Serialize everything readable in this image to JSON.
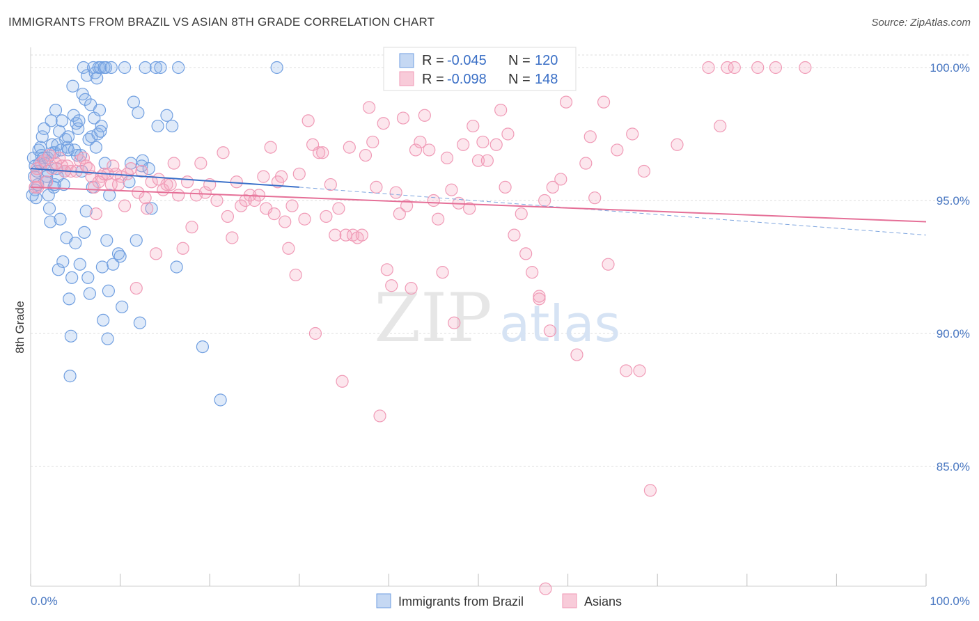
{
  "header": {
    "title": "IMMIGRANTS FROM BRAZIL VS ASIAN 8TH GRADE CORRELATION CHART",
    "source": "Source: ZipAtlas.com"
  },
  "watermark": {
    "zip": "ZIP",
    "atlas": "atlas"
  },
  "legend_top": [
    {
      "r_label": "R = ",
      "r_value": "-0.045",
      "n_label": "N = ",
      "n_value": "120"
    },
    {
      "r_label": "R = ",
      "r_value": "-0.098",
      "n_label": "N = ",
      "n_value": "148"
    }
  ],
  "chart_data": {
    "type": "scatter",
    "title": "IMMIGRANTS FROM BRAZIL VS ASIAN 8TH GRADE CORRELATION CHART",
    "xlabel": "",
    "ylabel": "8th Grade",
    "xlim": [
      0,
      100
    ],
    "ylim": [
      80.3,
      100.8
    ],
    "x_tick_labels": [
      {
        "value": 0,
        "label": "0.0%"
      },
      {
        "value": 100,
        "label": "100.0%"
      }
    ],
    "y_tick_labels": [
      {
        "value": 100,
        "label": "100.0%"
      },
      {
        "value": 95,
        "label": "95.0%"
      },
      {
        "value": 90,
        "label": "90.0%"
      },
      {
        "value": 85,
        "label": "85.0%"
      }
    ],
    "grid": "horizontal-dashed",
    "legend_placement": "top-center",
    "series": [
      {
        "name": "Immigrants from Brazil",
        "color": "#6f9ee0",
        "r": -0.045,
        "n": 120,
        "trend": {
          "x": [
            0,
            30
          ],
          "y": [
            96.2,
            95.5
          ],
          "dashed_to": [
            100,
            93.7
          ]
        },
        "points": [
          [
            0.3,
            96.6
          ],
          [
            0.5,
            96.3
          ],
          [
            0.5,
            95.4
          ],
          [
            0.6,
            95.1
          ],
          [
            0.8,
            95.6
          ],
          [
            0.9,
            96.9
          ],
          [
            1.0,
            96.4
          ],
          [
            1.1,
            97.0
          ],
          [
            1.2,
            96.7
          ],
          [
            1.3,
            97.4
          ],
          [
            1.4,
            96.6
          ],
          [
            1.5,
            97.7
          ],
          [
            1.6,
            96.4
          ],
          [
            1.7,
            95.7
          ],
          [
            1.8,
            95.9
          ],
          [
            1.9,
            96.6
          ],
          [
            2.0,
            95.2
          ],
          [
            2.1,
            94.7
          ],
          [
            2.2,
            94.2
          ],
          [
            2.3,
            98.0
          ],
          [
            2.4,
            97.1
          ],
          [
            2.5,
            96.8
          ],
          [
            2.6,
            95.5
          ],
          [
            2.7,
            96.8
          ],
          [
            2.8,
            98.4
          ],
          [
            2.9,
            96.2
          ],
          [
            3.0,
            97.1
          ],
          [
            3.1,
            92.4
          ],
          [
            3.2,
            97.6
          ],
          [
            3.3,
            94.3
          ],
          [
            3.4,
            96.9
          ],
          [
            3.5,
            98.0
          ],
          [
            3.6,
            92.7
          ],
          [
            3.7,
            95.6
          ],
          [
            3.8,
            96.1
          ],
          [
            3.9,
            97.3
          ],
          [
            4.0,
            93.6
          ],
          [
            4.1,
            97.0
          ],
          [
            4.2,
            96.9
          ],
          [
            4.3,
            91.3
          ],
          [
            4.4,
            88.4
          ],
          [
            4.5,
            89.9
          ],
          [
            4.6,
            92.1
          ],
          [
            4.7,
            99.3
          ],
          [
            4.8,
            98.2
          ],
          [
            4.9,
            96.9
          ],
          [
            5.0,
            93.4
          ],
          [
            5.1,
            97.9
          ],
          [
            5.2,
            96.7
          ],
          [
            5.3,
            97.7
          ],
          [
            5.4,
            98.0
          ],
          [
            5.5,
            92.6
          ],
          [
            5.6,
            96.7
          ],
          [
            5.7,
            96.1
          ],
          [
            5.8,
            99.0
          ],
          [
            5.9,
            100.0
          ],
          [
            6.0,
            93.8
          ],
          [
            6.1,
            98.8
          ],
          [
            6.2,
            94.6
          ],
          [
            6.3,
            99.7
          ],
          [
            6.4,
            92.1
          ],
          [
            6.5,
            97.3
          ],
          [
            6.6,
            91.5
          ],
          [
            6.7,
            98.6
          ],
          [
            6.8,
            97.4
          ],
          [
            6.9,
            95.5
          ],
          [
            7.0,
            100.0
          ],
          [
            7.1,
            98.1
          ],
          [
            7.2,
            99.8
          ],
          [
            7.3,
            97.0
          ],
          [
            7.4,
            99.6
          ],
          [
            7.5,
            97.5
          ],
          [
            7.6,
            100.0
          ],
          [
            7.7,
            98.4
          ],
          [
            7.8,
            100.0
          ],
          [
            7.9,
            97.8
          ],
          [
            8.0,
            92.5
          ],
          [
            8.1,
            90.5
          ],
          [
            8.2,
            100.0
          ],
          [
            8.3,
            96.4
          ],
          [
            8.4,
            100.0
          ],
          [
            8.5,
            93.5
          ],
          [
            8.6,
            89.8
          ],
          [
            8.7,
            91.6
          ],
          [
            8.8,
            95.2
          ],
          [
            9.0,
            100.0
          ],
          [
            9.2,
            92.6
          ],
          [
            9.8,
            93.0
          ],
          [
            10.0,
            92.9
          ],
          [
            10.2,
            91.0
          ],
          [
            10.5,
            100.0
          ],
          [
            11.0,
            95.7
          ],
          [
            11.2,
            96.4
          ],
          [
            11.5,
            98.7
          ],
          [
            11.8,
            93.5
          ],
          [
            12.0,
            98.3
          ],
          [
            12.2,
            90.4
          ],
          [
            12.4,
            96.3
          ],
          [
            12.5,
            96.5
          ],
          [
            12.8,
            100.0
          ],
          [
            13.2,
            96.2
          ],
          [
            13.5,
            94.7
          ],
          [
            14.0,
            100.0
          ],
          [
            14.2,
            97.8
          ],
          [
            14.5,
            100.0
          ],
          [
            15.2,
            98.2
          ],
          [
            15.8,
            97.8
          ],
          [
            16.3,
            92.5
          ],
          [
            16.5,
            100.0
          ],
          [
            19.2,
            89.5
          ],
          [
            21.2,
            87.5
          ],
          [
            27.5,
            100.0
          ],
          [
            0.2,
            95.2
          ],
          [
            0.4,
            95.9
          ],
          [
            0.7,
            96.1
          ],
          [
            1.9,
            96.1
          ],
          [
            2.7,
            95.6
          ],
          [
            3.0,
            95.9
          ],
          [
            7.8,
            97.6
          ],
          [
            4.2,
            97.4
          ]
        ]
      },
      {
        "name": "Asians",
        "color": "#f09ab6",
        "r": -0.098,
        "n": 148,
        "trend": {
          "x": [
            0,
            100
          ],
          "y": [
            95.5,
            94.2
          ]
        },
        "points": [
          [
            0.5,
            95.5
          ],
          [
            0.6,
            95.9
          ],
          [
            0.7,
            96.2
          ],
          [
            0.8,
            95.5
          ],
          [
            1.2,
            96.4
          ],
          [
            1.5,
            96.5
          ],
          [
            1.8,
            95.7
          ],
          [
            2.1,
            96.7
          ],
          [
            2.4,
            96.2
          ],
          [
            2.8,
            96.4
          ],
          [
            3.2,
            96.6
          ],
          [
            3.5,
            96.3
          ],
          [
            3.8,
            96.1
          ],
          [
            4.1,
            96.3
          ],
          [
            4.5,
            96.1
          ],
          [
            5.1,
            96.1
          ],
          [
            5.5,
            96.5
          ],
          [
            5.9,
            96.6
          ],
          [
            6.2,
            96.3
          ],
          [
            6.5,
            96.2
          ],
          [
            6.8,
            95.9
          ],
          [
            7.1,
            95.5
          ],
          [
            7.3,
            94.5
          ],
          [
            7.6,
            95.7
          ],
          [
            7.9,
            95.9
          ],
          [
            8.2,
            96.0
          ],
          [
            8.6,
            96.0
          ],
          [
            9.0,
            95.6
          ],
          [
            9.2,
            96.3
          ],
          [
            9.5,
            96.0
          ],
          [
            9.8,
            95.6
          ],
          [
            10.1,
            95.9
          ],
          [
            10.5,
            94.8
          ],
          [
            10.8,
            96.0
          ],
          [
            11.2,
            96.2
          ],
          [
            11.8,
            91.7
          ],
          [
            12.0,
            95.3
          ],
          [
            12.4,
            96.1
          ],
          [
            12.8,
            95.1
          ],
          [
            13.0,
            94.7
          ],
          [
            13.5,
            95.7
          ],
          [
            14.0,
            93.0
          ],
          [
            14.3,
            95.8
          ],
          [
            14.8,
            95.4
          ],
          [
            15.2,
            95.6
          ],
          [
            15.6,
            95.6
          ],
          [
            16.0,
            96.4
          ],
          [
            16.5,
            95.2
          ],
          [
            17.0,
            93.2
          ],
          [
            17.5,
            95.7
          ],
          [
            18.0,
            94.0
          ],
          [
            18.5,
            95.2
          ],
          [
            19.0,
            96.4
          ],
          [
            19.5,
            95.3
          ],
          [
            20.0,
            95.6
          ],
          [
            20.8,
            95.0
          ],
          [
            21.5,
            96.8
          ],
          [
            22.0,
            94.4
          ],
          [
            22.5,
            93.6
          ],
          [
            23.0,
            95.7
          ],
          [
            23.5,
            94.8
          ],
          [
            24.0,
            95.0
          ],
          [
            24.5,
            95.2
          ],
          [
            25.0,
            95.0
          ],
          [
            25.5,
            95.2
          ],
          [
            26.0,
            95.9
          ],
          [
            26.3,
            94.7
          ],
          [
            26.8,
            97.0
          ],
          [
            27.2,
            94.5
          ],
          [
            27.6,
            95.7
          ],
          [
            28.0,
            95.9
          ],
          [
            28.4,
            94.2
          ],
          [
            28.8,
            93.2
          ],
          [
            29.2,
            94.8
          ],
          [
            29.6,
            92.2
          ],
          [
            30.0,
            96.0
          ],
          [
            30.6,
            94.3
          ],
          [
            31.0,
            98.0
          ],
          [
            31.5,
            97.1
          ],
          [
            31.8,
            90.0
          ],
          [
            32.2,
            96.8
          ],
          [
            32.6,
            96.8
          ],
          [
            33.0,
            94.4
          ],
          [
            33.5,
            95.6
          ],
          [
            34.0,
            93.7
          ],
          [
            34.4,
            94.7
          ],
          [
            34.8,
            88.2
          ],
          [
            35.2,
            93.7
          ],
          [
            35.6,
            97.0
          ],
          [
            36.0,
            93.7
          ],
          [
            36.5,
            93.6
          ],
          [
            37.0,
            93.7
          ],
          [
            37.4,
            96.7
          ],
          [
            37.8,
            98.5
          ],
          [
            38.2,
            97.2
          ],
          [
            38.6,
            95.5
          ],
          [
            39.0,
            86.9
          ],
          [
            39.4,
            97.9
          ],
          [
            39.8,
            92.4
          ],
          [
            40.3,
            91.8
          ],
          [
            40.8,
            95.3
          ],
          [
            41.2,
            94.5
          ],
          [
            41.6,
            98.1
          ],
          [
            42.0,
            94.8
          ],
          [
            42.5,
            91.7
          ],
          [
            43.0,
            96.9
          ],
          [
            43.5,
            97.2
          ],
          [
            44.0,
            98.2
          ],
          [
            44.5,
            96.9
          ],
          [
            45.0,
            95.0
          ],
          [
            45.5,
            94.3
          ],
          [
            46.0,
            92.3
          ],
          [
            46.5,
            96.6
          ],
          [
            47.0,
            95.4
          ],
          [
            47.3,
            90.4
          ],
          [
            47.8,
            94.9
          ],
          [
            48.3,
            97.1
          ],
          [
            49.0,
            94.7
          ],
          [
            49.4,
            97.8
          ],
          [
            50.0,
            96.5
          ],
          [
            50.5,
            97.2
          ],
          [
            51.0,
            96.5
          ],
          [
            52.0,
            97.1
          ],
          [
            53.0,
            95.5
          ],
          [
            54.0,
            93.7
          ],
          [
            54.8,
            94.5
          ],
          [
            55.3,
            93.0
          ],
          [
            56.0,
            92.3
          ],
          [
            56.8,
            91.3
          ],
          [
            57.4,
            95.0
          ],
          [
            58.3,
            95.5
          ],
          [
            59.2,
            95.8
          ],
          [
            59.8,
            98.7
          ],
          [
            61.0,
            89.2
          ],
          [
            62.0,
            96.4
          ],
          [
            63.0,
            95.1
          ],
          [
            64.0,
            98.7
          ],
          [
            64.5,
            92.6
          ],
          [
            65.5,
            96.9
          ],
          [
            66.5,
            88.6
          ],
          [
            67.2,
            97.5
          ],
          [
            68.0,
            88.6
          ],
          [
            69.2,
            84.1
          ],
          [
            72.2,
            97.1
          ],
          [
            75.7,
            100.0
          ],
          [
            77.8,
            100.0
          ],
          [
            78.6,
            100.0
          ],
          [
            81.2,
            100.0
          ],
          [
            83.2,
            100.0
          ],
          [
            86.5,
            100.0
          ],
          [
            77.0,
            97.8
          ],
          [
            57.5,
            80.4
          ],
          [
            52.5,
            98.4
          ],
          [
            53.3,
            97.5
          ],
          [
            62.5,
            97.4
          ],
          [
            68.5,
            96.1
          ],
          [
            58.0,
            90.1
          ],
          [
            56.8,
            91.4
          ]
        ]
      }
    ]
  },
  "legend_bottom": [
    {
      "label": "Immigrants from Brazil"
    },
    {
      "label": "Asians"
    }
  ]
}
